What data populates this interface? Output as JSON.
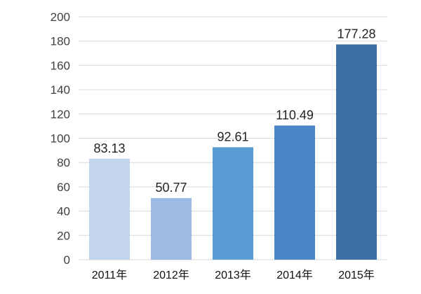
{
  "chart_data": {
    "type": "bar",
    "categories": [
      "2011年",
      "2012年",
      "2013年",
      "2014年",
      "2015年"
    ],
    "values": [
      83.13,
      50.77,
      92.61,
      110.49,
      177.28
    ],
    "data_labels": [
      "83.13",
      "50.77",
      "92.61",
      "110.49",
      "177.28"
    ],
    "title": "",
    "xlabel": "",
    "ylabel": "",
    "ylim": [
      0,
      200
    ],
    "yticks": [
      0,
      20,
      40,
      60,
      80,
      100,
      120,
      140,
      160,
      180,
      200
    ],
    "ytick_labels": [
      "0",
      "20",
      "40",
      "60",
      "80",
      "100",
      "120",
      "140",
      "160",
      "180",
      "200"
    ],
    "grid": true,
    "legend": "none",
    "colors": [
      "#c3d4ee",
      "#9dbbe5",
      "#5b9bd5",
      "#4a86c8",
      "#3e6fa6"
    ]
  }
}
